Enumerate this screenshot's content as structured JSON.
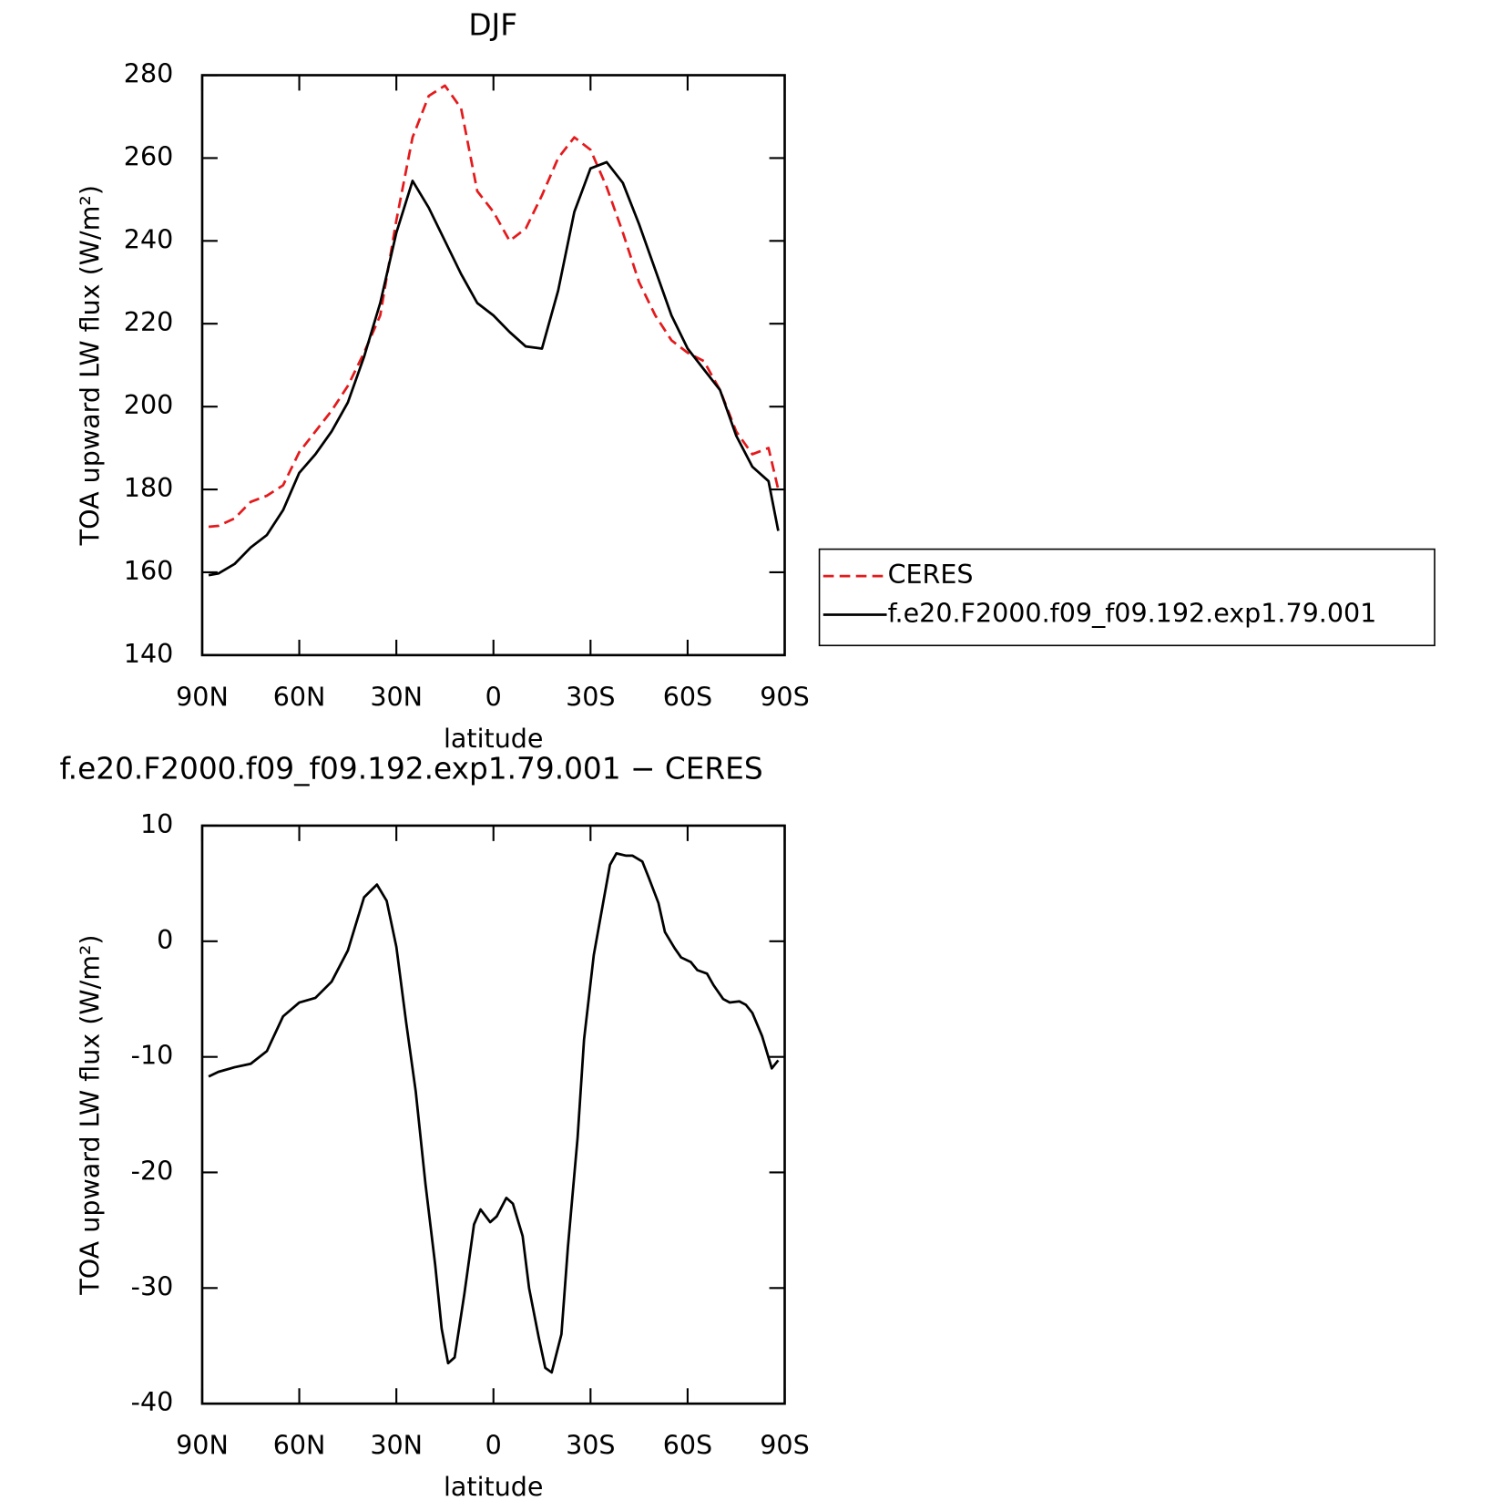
{
  "chart_data": [
    {
      "type": "line",
      "title": "DJF",
      "xlabel": "latitude",
      "ylabel": "TOA upward LW flux (W/m²)",
      "x": [
        88,
        85,
        80,
        75,
        70,
        65,
        60,
        55,
        50,
        45,
        40,
        35,
        30,
        25,
        20,
        15,
        10,
        5,
        0,
        -5,
        -10,
        -15,
        -20,
        -25,
        -30,
        -35,
        -40,
        -45,
        -50,
        -55,
        -60,
        -65,
        -70,
        -75,
        -80,
        -85,
        -88
      ],
      "series": [
        {
          "name": "CERES",
          "color": "#e41a1c",
          "dashed": true,
          "values": [
            171,
            171.2,
            173,
            177,
            178.5,
            181,
            189,
            194,
            199,
            205,
            213,
            222,
            245,
            265,
            275,
            277.5,
            272,
            252,
            247,
            240,
            243,
            251,
            260,
            265,
            262,
            253,
            242,
            230,
            222,
            216,
            213,
            211,
            204,
            194,
            188.5,
            190,
            180
          ]
        },
        {
          "name": "f.e20.F2000.f09_f09.192.exp1.79.001",
          "color": "#000000",
          "dashed": false,
          "values": [
            159.3,
            159.7,
            162,
            166,
            169,
            175,
            184,
            188.5,
            194,
            201,
            212,
            225,
            242,
            254.5,
            248,
            240,
            232,
            225,
            222,
            218,
            214.5,
            214,
            228,
            247,
            257.5,
            259,
            254,
            244,
            233,
            222,
            214,
            209,
            204,
            193,
            185.5,
            182,
            170
          ]
        }
      ],
      "xlim": [
        90,
        -90
      ],
      "xticks": [
        {
          "value": 90,
          "label": "90N"
        },
        {
          "value": 60,
          "label": "60N"
        },
        {
          "value": 30,
          "label": "30N"
        },
        0,
        {
          "value": -30,
          "label": "30S"
        },
        {
          "value": -60,
          "label": "60S"
        },
        {
          "value": -90,
          "label": "90S"
        }
      ],
      "ylim": [
        140,
        280
      ],
      "yticks": [
        140,
        160,
        180,
        200,
        220,
        240,
        260,
        280
      ],
      "legend": "right"
    },
    {
      "type": "line",
      "title": "f.e20.F2000.f09_f09.192.exp1.79.001 − CERES",
      "xlabel": "latitude",
      "ylabel": "TOA upward LW flux (W/m²)",
      "x": [
        88,
        85,
        80,
        75,
        70,
        65,
        60,
        55,
        50,
        45,
        40,
        36,
        33,
        30,
        27,
        24,
        21,
        18,
        16,
        14,
        12,
        9,
        6,
        4,
        1,
        -1,
        -4,
        -6,
        -9,
        -11,
        -14,
        -16,
        -18,
        -21,
        -23,
        -26,
        -28,
        -31,
        -34,
        -36,
        -38,
        -41,
        -43,
        -46,
        -48,
        -51,
        -53,
        -56,
        -58,
        -61,
        -63,
        -66,
        -68,
        -71,
        -73,
        -76,
        -78,
        -80,
        -83,
        -86,
        -88
      ],
      "series": [
        {
          "name": null,
          "color": "#000000",
          "dashed": false,
          "values": [
            -11.7,
            -11.3,
            -10.9,
            -10.6,
            -9.5,
            -6.5,
            -5.3,
            -4.9,
            -3.5,
            -0.8,
            3.8,
            4.9,
            3.5,
            -0.5,
            -7,
            -13,
            -21,
            -28,
            -33.5,
            -36.5,
            -36,
            -30.5,
            -24.5,
            -23.2,
            -24.3,
            -23.8,
            -22.2,
            -22.7,
            -25.5,
            -30,
            -34.3,
            -36.9,
            -37.3,
            -34,
            -26.5,
            -17,
            -8.5,
            -1.2,
            3.5,
            6.6,
            7.6,
            7.4,
            7.4,
            6.9,
            5.5,
            3.3,
            0.8,
            -0.6,
            -1.4,
            -1.8,
            -2.5,
            -2.8,
            -3.8,
            -5,
            -5.3,
            -5.2,
            -5.5,
            -6.2,
            -8.2,
            -11,
            -10.3
          ]
        }
      ],
      "xlim": [
        90,
        -90
      ],
      "xticks": [
        {
          "value": 90,
          "label": "90N"
        },
        {
          "value": 60,
          "label": "60N"
        },
        {
          "value": 30,
          "label": "30N"
        },
        0,
        {
          "value": -30,
          "label": "30S"
        },
        {
          "value": -60,
          "label": "60S"
        },
        {
          "value": -90,
          "label": "90S"
        }
      ],
      "ylim": [
        -40,
        10
      ],
      "yticks": [
        -40,
        -30,
        -20,
        -10,
        0,
        10
      ]
    }
  ]
}
